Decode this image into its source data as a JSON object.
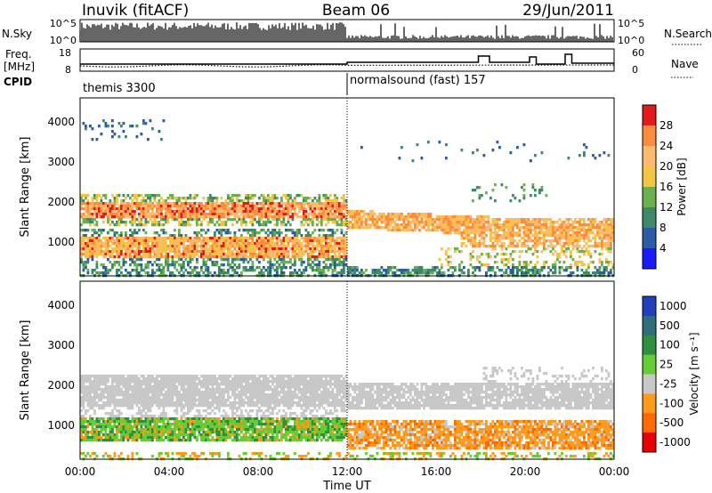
{
  "header": {
    "station": "Inuvik (fitACF)",
    "beam": "Beam 06",
    "date": "29/Jun/2011"
  },
  "top_panels": {
    "nsky_label": "N.Sky",
    "nsky_ticks": [
      "10^5",
      "10^0"
    ],
    "nsearch_label": "N.Search",
    "nsearch_ticks": [
      "10^5",
      "10^0"
    ],
    "freq_label": "Freq.",
    "freq_unit": "[MHz]",
    "freq_ticks": [
      "18",
      "8"
    ],
    "nave_label": "Nave",
    "nave_ticks": [
      "60",
      "0"
    ],
    "cpid_label": "CPID",
    "modes": [
      "themis 3300",
      "normalsound (fast) 157"
    ],
    "mode_change_hour": 12
  },
  "axes": {
    "xlabel": "Time UT",
    "ylabel": "Slant Range [km]",
    "x_ticks": [
      "00:00",
      "04:00",
      "08:00",
      "12:00",
      "16:00",
      "20:00",
      "00:00"
    ],
    "y_ticks": [
      "1000",
      "2000",
      "3000",
      "4000"
    ]
  },
  "colorbars": {
    "power_label": "Power [dB]",
    "power_ticks": [
      "28",
      "24",
      "20",
      "16",
      "12",
      "8",
      "4"
    ],
    "power_colors": [
      "#e31a1c",
      "#fd8d3c",
      "#fdb96c",
      "#f4c542",
      "#6ab04c",
      "#3c8a67",
      "#2b5aa6",
      "#1a1aff"
    ],
    "velocity_label": "Velocity [m s⁻¹]",
    "velocity_ticks": [
      "1000",
      "500",
      "100",
      "25",
      "-25",
      "-100",
      "-500",
      "-1000"
    ],
    "velocity_colors": [
      "#1f3fbf",
      "#2c6e7a",
      "#2e8f3c",
      "#66cc33",
      "#c8c8c8",
      "#ff9a1a",
      "#ff6a00",
      "#e60000"
    ]
  },
  "chart_data": [
    {
      "type": "heatmap",
      "title": "Power",
      "xlabel": "Time UT",
      "ylabel": "Slant Range [km]",
      "xlim": [
        0,
        24
      ],
      "ylim": [
        200,
        4500
      ],
      "colorbar": "Power [dB]",
      "bands": [
        {
          "t_start": 0,
          "t_end": 12,
          "range_km": [
            1650,
            1950
          ],
          "power_db": 24
        },
        {
          "t_start": 0,
          "t_end": 12,
          "range_km": [
            700,
            1100
          ],
          "power_db": 22
        },
        {
          "t_start": 12,
          "t_end": 18,
          "range_km": [
            1400,
            1800
          ],
          "power_db": 22
        },
        {
          "t_start": 18,
          "t_end": 24,
          "range_km": [
            900,
            1600
          ],
          "power_db": 20
        },
        {
          "t_start": 0,
          "t_end": 24,
          "range_km": [
            200,
            450
          ],
          "power_db": 10
        }
      ]
    },
    {
      "type": "heatmap",
      "title": "Velocity",
      "xlabel": "Time UT",
      "ylabel": "Slant Range [km]",
      "xlim": [
        0,
        24
      ],
      "ylim": [
        200,
        4500
      ],
      "colorbar": "Velocity [m s⁻¹]",
      "bands": [
        {
          "t_start": 0,
          "t_end": 12,
          "range_km": [
            1500,
            2200
          ],
          "velocity_ms": 0
        },
        {
          "t_start": 0,
          "t_end": 12,
          "range_km": [
            700,
            1200
          ],
          "velocity_ms": 100
        },
        {
          "t_start": 12,
          "t_end": 18,
          "range_km": [
            1500,
            2000
          ],
          "velocity_ms": 0
        },
        {
          "t_start": 12,
          "t_end": 24,
          "range_km": [
            500,
            1200
          ],
          "velocity_ms": -100
        }
      ]
    }
  ]
}
